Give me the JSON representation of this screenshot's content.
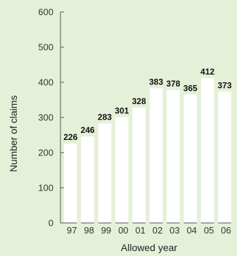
{
  "colors": {
    "background": "#e5f0d8",
    "bar": "#ffffff",
    "axis": "#555555",
    "text": "#222222"
  },
  "chart_data": {
    "type": "bar",
    "title": "",
    "xlabel": "Allowed year",
    "ylabel": "Number of claims",
    "categories": [
      "97",
      "98",
      "99",
      "00",
      "01",
      "02",
      "03",
      "04",
      "05",
      "06"
    ],
    "values": [
      226,
      246,
      283,
      301,
      328,
      383,
      378,
      365,
      412,
      373
    ],
    "data_labels": [
      "226",
      "246",
      "283",
      "301",
      "328",
      "383",
      "378",
      "365",
      "412",
      "373"
    ],
    "ylim": [
      0,
      600
    ],
    "yticks": [
      0,
      100,
      200,
      300,
      400,
      500,
      600
    ],
    "ytick_labels": [
      "0",
      "100",
      "200",
      "300",
      "400",
      "500",
      "600"
    ],
    "grid": false,
    "legend": "none"
  }
}
